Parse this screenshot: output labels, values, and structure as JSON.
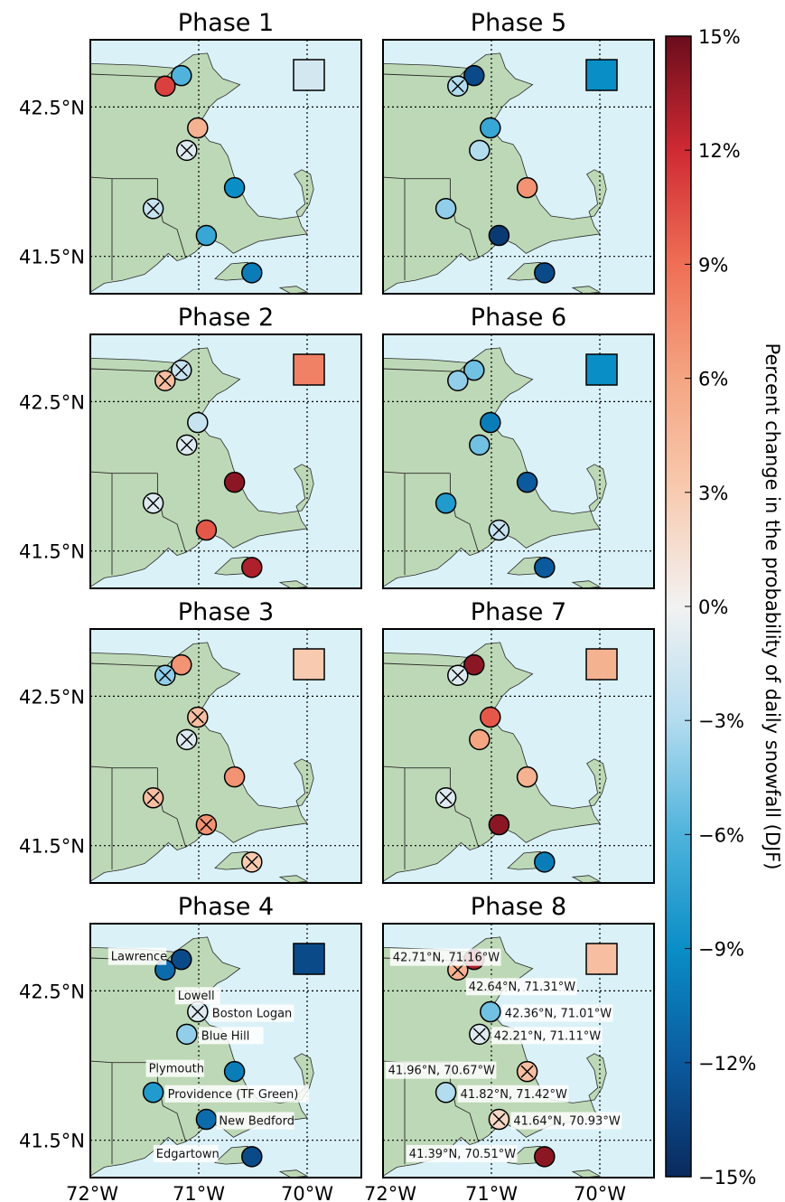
{
  "figure": {
    "colorbar": {
      "label": "Percent change in the probability of daily snowfall (DJF)",
      "min": -15,
      "max": 15,
      "ticks": [
        "15%",
        "12%",
        "9%",
        "6%",
        "3%",
        "0%",
        "−3%",
        "−6%",
        "−9%",
        "−12%",
        "−15%"
      ],
      "tick_values": [
        15,
        12,
        9,
        6,
        3,
        0,
        -3,
        -6,
        -9,
        -12,
        -15
      ],
      "colorscale": [
        "#0a2a5e",
        "#0b5a9e",
        "#0a8ec6",
        "#4fb3dc",
        "#b3dcef",
        "#f2f2f2",
        "#f8cbb0",
        "#f4a582",
        "#ef6f55",
        "#cf2a33",
        "#6b0d1c"
      ]
    },
    "x_ticks": [
      "72°W",
      "71°W",
      "70°W"
    ],
    "y_ticks": [
      "42.5°N",
      "41.5°N"
    ]
  },
  "stations": [
    {
      "name": "Lawrence",
      "lat": 42.71,
      "lon": -71.16,
      "coord_label": "42.71°N, 71.16°W"
    },
    {
      "name": "Lowell",
      "lat": 42.64,
      "lon": -71.31,
      "coord_label": "42.64°N, 71.31°W"
    },
    {
      "name": "Boston Logan",
      "lat": 42.36,
      "lon": -71.01,
      "coord_label": "42.36°N, 71.01°W"
    },
    {
      "name": "Blue Hill",
      "lat": 42.21,
      "lon": -71.11,
      "coord_label": "42.21°N, 71.11°W"
    },
    {
      "name": "Plymouth",
      "lat": 41.96,
      "lon": -70.67,
      "coord_label": "41.96°N, 70.67°W"
    },
    {
      "name": "Providence (TF Green)",
      "lat": 41.82,
      "lon": -71.42,
      "coord_label": "41.82°N, 71.42°W"
    },
    {
      "name": "New Bedford",
      "lat": 41.64,
      "lon": -70.93,
      "coord_label": "41.64°N, 70.93°W"
    },
    {
      "name": "Edgartown",
      "lat": 41.39,
      "lon": -70.51,
      "coord_label": "41.39°N, 70.51°W"
    }
  ],
  "chart_data": {
    "type": "map",
    "x_ticks": [
      "72°W",
      "71°W",
      "70°W"
    ],
    "y_ticks": [
      "42.5°N",
      "41.5°N"
    ],
    "lon_range": [
      -72.0,
      -69.5
    ],
    "lat_range": [
      41.25,
      42.95
    ],
    "colorbar_label": "Percent change in the probability of daily snowfall (DJF)",
    "colorbar_range": [
      -15,
      15
    ],
    "value_unit": "%",
    "station_order": [
      "Lawrence",
      "Lowell",
      "Boston Logan",
      "Blue Hill",
      "Plymouth",
      "Providence (TF Green)",
      "New Bedford",
      "Edgartown"
    ],
    "phases": [
      {
        "title": "Phase 1",
        "regional_mean": -1.5,
        "values": [
          -6,
          11,
          5,
          -1,
          -9,
          -2,
          -7,
          -10
        ],
        "crossed": [
          false,
          false,
          false,
          true,
          false,
          true,
          false,
          false
        ]
      },
      {
        "title": "Phase 2",
        "regional_mean": 8,
        "values": [
          -2,
          4,
          -2,
          -1,
          14,
          -1,
          10,
          13
        ],
        "crossed": [
          true,
          true,
          false,
          true,
          false,
          true,
          false,
          false
        ]
      },
      {
        "title": "Phase 3",
        "regional_mean": 3,
        "values": [
          7,
          -4,
          4,
          -1,
          7,
          4,
          7,
          3
        ],
        "crossed": [
          false,
          true,
          true,
          true,
          false,
          true,
          true,
          true
        ]
      },
      {
        "title": "Phase 4",
        "regional_mean": -13,
        "values": [
          -13,
          -11,
          -1,
          -4,
          -10,
          -8,
          -11,
          -13
        ],
        "crossed": [
          false,
          false,
          true,
          false,
          false,
          false,
          false,
          false
        ]
      },
      {
        "title": "Phase 5",
        "regional_mean": -9,
        "values": [
          -13,
          -3,
          -7,
          -3,
          7,
          -4,
          -14,
          -13
        ],
        "crossed": [
          false,
          true,
          false,
          false,
          false,
          false,
          false,
          false
        ]
      },
      {
        "title": "Phase 6",
        "regional_mean": -9,
        "values": [
          -5,
          -4,
          -10,
          -5,
          -12,
          -8,
          -2,
          -12
        ],
        "crossed": [
          false,
          false,
          false,
          false,
          false,
          false,
          true,
          false
        ]
      },
      {
        "title": "Phase 7",
        "regional_mean": 5,
        "values": [
          14,
          -1,
          10,
          6,
          5,
          -1,
          14,
          -10
        ],
        "crossed": [
          false,
          true,
          false,
          false,
          false,
          true,
          false,
          false
        ]
      },
      {
        "title": "Phase 8",
        "regional_mean": 4,
        "values": [
          13,
          5,
          -5,
          -1,
          4,
          -3,
          2,
          14
        ],
        "crossed": [
          false,
          true,
          false,
          true,
          true,
          false,
          true,
          false
        ]
      }
    ]
  }
}
